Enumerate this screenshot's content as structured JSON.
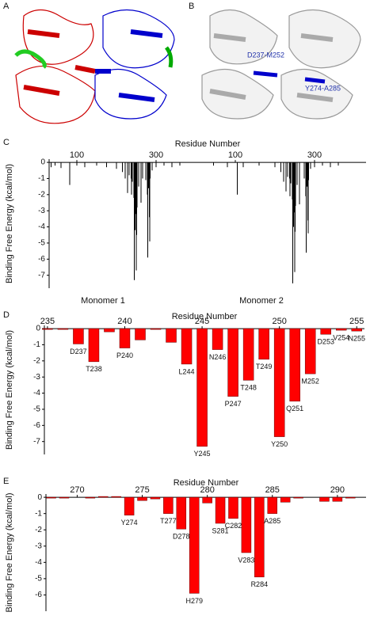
{
  "structures": [
    {
      "panel": "A"
    },
    {
      "panel": "B",
      "labels": [
        "D237-M252",
        "Y274-A285"
      ]
    }
  ],
  "chart_data": [
    {
      "type": "bar",
      "panel": "C",
      "title": "Residue Number",
      "ylabel": "Binding Free Energy (kcal/mol)",
      "color": "#000000",
      "annotations": [
        "Monomer 1",
        "Monomer 2"
      ],
      "x": [
        35,
        45,
        60,
        82,
        100,
        120,
        150,
        175,
        200,
        215,
        222,
        228,
        232,
        237,
        238,
        240,
        244,
        245,
        246,
        247,
        248,
        249,
        250,
        251,
        252,
        256,
        262,
        266,
        274,
        278,
        279,
        281,
        283,
        284,
        285,
        290,
        300,
        320,
        340,
        360,
        445,
        480,
        505,
        520,
        560,
        600,
        615,
        622,
        628,
        632,
        637,
        638,
        640,
        644,
        645,
        646,
        647,
        648,
        649,
        650,
        651,
        652,
        656,
        662,
        674,
        678,
        679,
        681,
        683,
        684,
        685,
        690,
        700,
        720,
        740,
        760
      ],
      "values": [
        -0.3,
        -0.2,
        -0.35,
        -1.4,
        -0.2,
        -0.3,
        -0.2,
        -0.3,
        -0.4,
        -0.6,
        -1.0,
        -1.9,
        -0.8,
        -1.0,
        -2.0,
        -1.2,
        -2.2,
        -7.3,
        -1.3,
        -4.2,
        -3.2,
        -1.9,
        -6.7,
        -4.5,
        -2.8,
        -1.5,
        -2.5,
        -1.0,
        -1.1,
        -2.0,
        -5.9,
        -1.6,
        -3.4,
        -4.9,
        -1.0,
        -0.5,
        -0.3,
        -0.2,
        -0.3,
        -0.2,
        -0.2,
        -0.3,
        -2.0,
        -0.3,
        -0.2,
        -0.3,
        -0.6,
        -1.2,
        -1.8,
        -0.9,
        -1.0,
        -2.1,
        -1.3,
        -2.3,
        -7.5,
        -1.2,
        -4.0,
        -3.1,
        -2.0,
        -6.8,
        -4.3,
        -2.7,
        -1.4,
        -2.6,
        -1.0,
        -2.1,
        -5.6,
        -1.5,
        -3.6,
        -4.4,
        -1.1,
        -0.4,
        -0.3,
        -0.2,
        -0.3,
        -0.2
      ],
      "xlim": [
        30,
        830
      ],
      "xticks": [
        100,
        300,
        {
          "value": 500,
          "label": "100"
        },
        {
          "value": 700,
          "label": "300"
        }
      ],
      "ylim": [
        -7.8,
        0.2
      ],
      "yticks": [
        0,
        -1,
        -2,
        -3,
        -4,
        -5,
        -6,
        -7
      ]
    },
    {
      "type": "bar",
      "panel": "D",
      "title": "Residue Number",
      "ylabel": "Binding Free Energy (kcal/mol)",
      "color": "#ff0000",
      "x": [
        235,
        236,
        237,
        238,
        239,
        240,
        241,
        242,
        243,
        244,
        245,
        246,
        247,
        248,
        249,
        250,
        251,
        252,
        253,
        254,
        255
      ],
      "values": [
        -0.05,
        -0.05,
        -0.95,
        -2.05,
        -0.2,
        -1.2,
        -0.7,
        -0.05,
        -0.85,
        -2.2,
        -7.3,
        -1.3,
        -4.2,
        -3.2,
        -1.9,
        -6.7,
        -4.5,
        -2.8,
        -0.35,
        -0.1,
        -0.15
      ],
      "labels": [
        null,
        null,
        "D237",
        "T238",
        null,
        "P240",
        null,
        null,
        null,
        "L244",
        "Y245",
        "N246",
        "P247",
        "T248",
        "T249",
        "Y250",
        "Q251",
        "M252",
        "D253",
        "V254",
        "N255"
      ],
      "xlim": [
        234.8,
        255.5
      ],
      "xticks": [
        235,
        240,
        245,
        250,
        255
      ],
      "ylim": [
        -7.8,
        0.2
      ],
      "yticks": [
        0,
        -1,
        -2,
        -3,
        -4,
        -5,
        -6,
        -7
      ]
    },
    {
      "type": "bar",
      "panel": "E",
      "title": "Residue Number",
      "ylabel": "Binding Free Energy (kcal/mol)",
      "color": "#ff0000",
      "x": [
        268,
        269,
        270,
        271,
        272,
        273,
        274,
        275,
        276,
        277,
        278,
        279,
        280,
        281,
        282,
        283,
        284,
        285,
        286,
        287,
        288,
        289,
        290,
        291
      ],
      "values": [
        -0.05,
        -0.05,
        0,
        -0.05,
        0.05,
        0.05,
        -1.1,
        -0.2,
        -0.1,
        -1.0,
        -1.95,
        -5.9,
        -0.35,
        -1.6,
        -1.3,
        -3.4,
        -4.9,
        -1.0,
        -0.3,
        -0.05,
        0,
        -0.25,
        -0.25,
        -0.05
      ],
      "labels": [
        null,
        null,
        null,
        null,
        null,
        null,
        "Y274",
        null,
        null,
        "T277",
        "D278",
        "H279",
        null,
        "S281",
        "C282",
        "V283",
        "R284",
        "A285",
        null,
        null,
        null,
        null,
        null,
        null
      ],
      "xlim": [
        267.6,
        292.2
      ],
      "xticks": [
        270,
        275,
        280,
        285,
        290
      ],
      "ylim": [
        -7.0,
        0.2
      ],
      "yticks": [
        0,
        -1,
        -2,
        -3,
        -4,
        -5,
        -6
      ]
    }
  ]
}
